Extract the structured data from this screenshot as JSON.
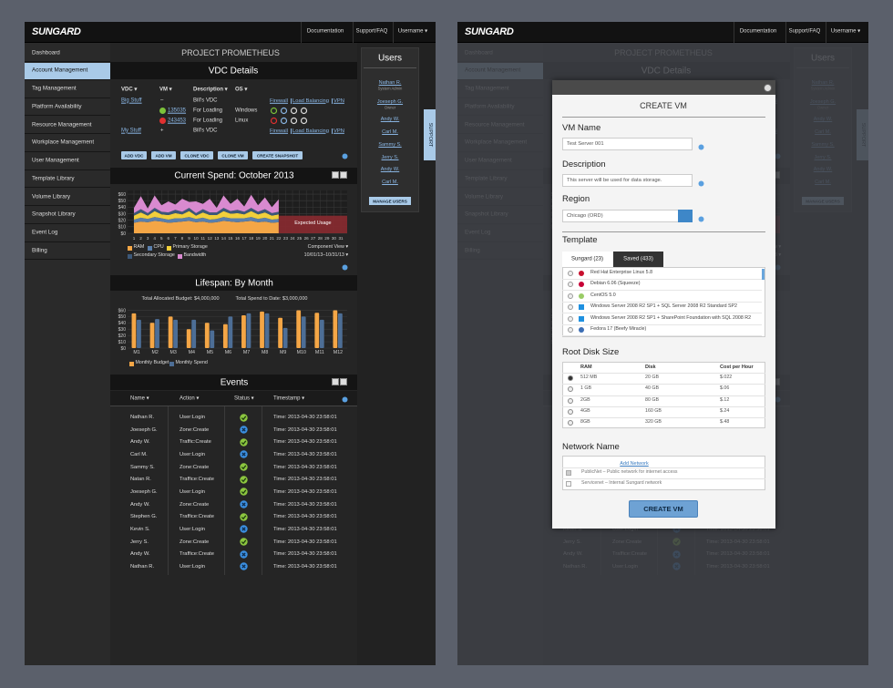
{
  "header": {
    "logo": "SUNGARD",
    "links": [
      "Documentation",
      "Support/FAQ",
      "Username ▾"
    ]
  },
  "sidebar": {
    "items": [
      "Dashboard",
      "Account Management",
      "Tag Management",
      "Platform Availability",
      "Resource Management",
      "Workplace Management",
      "User Management",
      "Template Library",
      "Volume Library",
      "Snapshot Library",
      "Event Log",
      "Billing"
    ],
    "active": 1
  },
  "project_title": "PROJECT PROMETHEUS",
  "vdc": {
    "title": "VDC Details",
    "columns": [
      "VDC ▾",
      "VM ▾",
      "Description ▾",
      "OS ▾"
    ],
    "rows": [
      {
        "vdc": "Big Stuff",
        "vm": "–",
        "description": "Bill's VDC",
        "actions": [
          "Firewall",
          "Load Balancing",
          "VPN"
        ]
      },
      {
        "vm": "135035",
        "description": "For Loading",
        "os": "Windows",
        "status": "running"
      },
      {
        "vm": "243453",
        "description": "For Loading",
        "os": "Linux",
        "status": "stopped"
      },
      {
        "vdc": "My Stuff",
        "vm": "+",
        "description": "Bill's VDC",
        "actions": [
          "Firewall",
          "Load Balancing",
          "VPN"
        ]
      }
    ],
    "buttons": [
      "ADD VDC",
      "ADD VM",
      "CLONE VDC",
      "CLONE VM",
      "CREATE SNAPSHOT"
    ]
  },
  "chart_data": [
    {
      "type": "area",
      "title": "Current Spend: October 2013",
      "stacked": true,
      "grid": true,
      "x": [
        1,
        2,
        3,
        4,
        5,
        6,
        7,
        8,
        9,
        10,
        11,
        12,
        13,
        14,
        15,
        16,
        17,
        18,
        19,
        20,
        21,
        22,
        23,
        24,
        25,
        26,
        27,
        28,
        29,
        30,
        31
      ],
      "xlim": [
        1,
        31
      ],
      "xticks": [
        1,
        2,
        3,
        4,
        5,
        6,
        7,
        8,
        9,
        10,
        11,
        12,
        13,
        14,
        15,
        16,
        17,
        18,
        19,
        20,
        21,
        22,
        23,
        24,
        25,
        26,
        27,
        28,
        29,
        30,
        31
      ],
      "ylim": [
        0,
        65
      ],
      "yticks": [
        {
          "value": 0,
          "label": "$0"
        },
        {
          "value": 10,
          "label": "$10"
        },
        {
          "value": 20,
          "label": "$20"
        },
        {
          "value": 30,
          "label": "$30"
        },
        {
          "value": 40,
          "label": "$40"
        },
        {
          "value": 50,
          "label": "$50"
        },
        {
          "value": 60,
          "label": "$60"
        }
      ],
      "series": [
        {
          "name": "RAM",
          "color": "#f4a646",
          "values": [
            16,
            18,
            17,
            19,
            18,
            16,
            17,
            18,
            19,
            17,
            18,
            16,
            17,
            19,
            18,
            17,
            18,
            19,
            17,
            18,
            16,
            17,
            null,
            null,
            null,
            null,
            null,
            null,
            null,
            null,
            null
          ]
        },
        {
          "name": "CPU",
          "color": "#5a7fab",
          "values": [
            5,
            6,
            5,
            6,
            5,
            5,
            6,
            5,
            6,
            5,
            6,
            5,
            5,
            6,
            5,
            6,
            5,
            6,
            5,
            6,
            5,
            5,
            null,
            null,
            null,
            null,
            null,
            null,
            null,
            null,
            null
          ]
        },
        {
          "name": "Primary Storage",
          "color": "#f1cf3b",
          "values": [
            6,
            8,
            5,
            9,
            6,
            7,
            8,
            6,
            9,
            5,
            8,
            7,
            6,
            9,
            7,
            8,
            6,
            9,
            7,
            8,
            6,
            7,
            null,
            null,
            null,
            null,
            null,
            null,
            null,
            null,
            null
          ]
        },
        {
          "name": "Secondary Storage",
          "color": "#3c5878",
          "values": [
            4,
            5,
            4,
            5,
            4,
            4,
            5,
            4,
            5,
            4,
            5,
            4,
            4,
            5,
            4,
            5,
            4,
            5,
            4,
            5,
            4,
            4,
            null,
            null,
            null,
            null,
            null,
            null,
            null,
            null,
            null
          ]
        },
        {
          "name": "Bandwidth",
          "color": "#d98ad0",
          "values": [
            8,
            20,
            7,
            19,
            10,
            17,
            8,
            20,
            9,
            18,
            8,
            21,
            7,
            19,
            11,
            17,
            8,
            20,
            10,
            18,
            9,
            19,
            null,
            null,
            null,
            null,
            null,
            null,
            null,
            null,
            null
          ]
        }
      ],
      "annotation": {
        "text": "Expected Usage",
        "x": [
          22,
          31
        ],
        "value": 27
      },
      "controls": [
        "Component View ▾",
        "10/01/13–10/31/13 ▾"
      ]
    },
    {
      "type": "bar",
      "title": "Lifespan: By Month",
      "grid": true,
      "notes": [
        "Total Allocated Budget: $4,000,000",
        "Total Spend to Date: $3,000,000"
      ],
      "categories": [
        "M1",
        "M2",
        "M3",
        "M4",
        "M5",
        "M6",
        "M7",
        "M8",
        "M9",
        "M10",
        "M11",
        "M12"
      ],
      "ylim": [
        0,
        65
      ],
      "yticks": [
        {
          "value": 0,
          "label": "$0"
        },
        {
          "value": 10,
          "label": "$10"
        },
        {
          "value": 20,
          "label": "$20"
        },
        {
          "value": 30,
          "label": "$30"
        },
        {
          "value": 40,
          "label": "$40"
        },
        {
          "value": 50,
          "label": "$50"
        },
        {
          "value": 60,
          "label": "$60"
        }
      ],
      "series": [
        {
          "name": "Monthly Budget",
          "color": "#f4a646",
          "values": [
            55,
            40,
            50,
            30,
            40,
            38,
            52,
            58,
            48,
            60,
            56,
            60
          ]
        },
        {
          "name": "Monthly Spend",
          "color": "#4d6e96",
          "values": [
            45,
            46,
            45,
            45,
            28,
            50,
            55,
            55,
            32,
            50,
            45,
            55
          ]
        }
      ]
    }
  ],
  "events": {
    "title": "Events",
    "columns": [
      "Name ▾",
      "Action ▾",
      "Status ▾",
      "Timestamp ▾"
    ],
    "rows": [
      {
        "name": "Nathan R.",
        "action": "User:Login",
        "status": "ok",
        "time": "Time: 2013-04-30 23:58:01"
      },
      {
        "name": "Joeseph G.",
        "action": "Zone:Create",
        "status": "error",
        "time": "Time: 2013-04-30 23:58:01"
      },
      {
        "name": "Andy W.",
        "action": "Traffic:Create",
        "status": "ok",
        "time": "Time: 2013-04-30 23:58:01"
      },
      {
        "name": "Carl M.",
        "action": "User:Login",
        "status": "error",
        "time": "Time: 2013-04-30 23:58:01"
      },
      {
        "name": "Sammy S.",
        "action": "Zone:Create",
        "status": "ok",
        "time": "Time: 2013-04-30 23:58:01"
      },
      {
        "name": "Natan R.",
        "action": "Traffice:Create",
        "status": "ok",
        "time": "Time: 2013-04-30 23:58:01"
      },
      {
        "name": "Joeseph G.",
        "action": "User:Login",
        "status": "ok",
        "time": "Time: 2013-04-30 23:58:01"
      },
      {
        "name": "Andy W.",
        "action": "Zone:Create",
        "status": "error",
        "time": "Time: 2013-04-30 23:58:01"
      },
      {
        "name": "Stephen G.",
        "action": "Traffice:Create",
        "status": "ok",
        "time": "Time: 2013-04-30 23:58:01"
      },
      {
        "name": "Kevin S.",
        "action": "User:Login",
        "status": "error",
        "time": "Time: 2013-04-30 23:58:01"
      },
      {
        "name": "Jerry S.",
        "action": "Zone:Create",
        "status": "ok",
        "time": "Time: 2013-04-30 23:58:01"
      },
      {
        "name": "Andy W.",
        "action": "Traffice:Create",
        "status": "error",
        "time": "Time: 2013-04-30 23:58:01"
      },
      {
        "name": "Nathan R.",
        "action": "User:Login",
        "status": "error",
        "time": "Time: 2013-04-30 23:58:01"
      }
    ]
  },
  "users": {
    "title": "Users",
    "list": [
      {
        "name": "Nathan R.",
        "role": "System Admin"
      },
      {
        "name": "Joeseph G.",
        "role": "Owner"
      },
      {
        "name": "Andy W."
      },
      {
        "name": "Carl M."
      },
      {
        "name": "Sammy S."
      },
      {
        "name": "Jerry S."
      },
      {
        "name": "Andy W."
      },
      {
        "name": "Carl M."
      }
    ],
    "button": "MANAGE USERS"
  },
  "support_tab": "SUPPORT",
  "modal": {
    "title": "CREATE VM",
    "vm_name": {
      "label": "VM Name",
      "value": "Test Server 001"
    },
    "description": {
      "label": "Description",
      "value": "This server will be used for data storage."
    },
    "region": {
      "label": "Region",
      "value": "Chicago (ORD)"
    },
    "template": {
      "label": "Template",
      "tabs": [
        "Sungard (23)",
        "Saved (433)"
      ],
      "active_tab": 0,
      "items": [
        "Red Hat Enterprise Linux 5.8",
        "Debian 6.06 (Squeeze)",
        "CentOS 5.0",
        "Windows Server 2008 R2 SP1 + SQL Server 2008 R2 Standard SP2",
        "Windows Server 2008 R2 SP1 + SharePoint Foundation with SQL 2008 R2",
        "Fedora 17 (Beefy Miracle)"
      ]
    },
    "root_disk": {
      "label": "Root Disk Size",
      "columns": [
        "RAM",
        "Disk",
        "Cost per Hour"
      ],
      "selected": 0,
      "rows": [
        [
          "512 MB",
          "20 GB",
          "$.022"
        ],
        [
          "1 GB",
          "40 GB",
          "$.06"
        ],
        [
          "2GB",
          "80 GB",
          "$.12"
        ],
        [
          "4GB",
          "160 GB",
          "$.24"
        ],
        [
          "8GB",
          "320 GB",
          "$.48"
        ]
      ]
    },
    "network": {
      "label": "Network Name",
      "add": "Add Network",
      "checked": 0,
      "items": [
        "PublicNet – Public network for internet access",
        "Servicenet – Internal Sungard network"
      ]
    },
    "button": "CREATE VM"
  }
}
